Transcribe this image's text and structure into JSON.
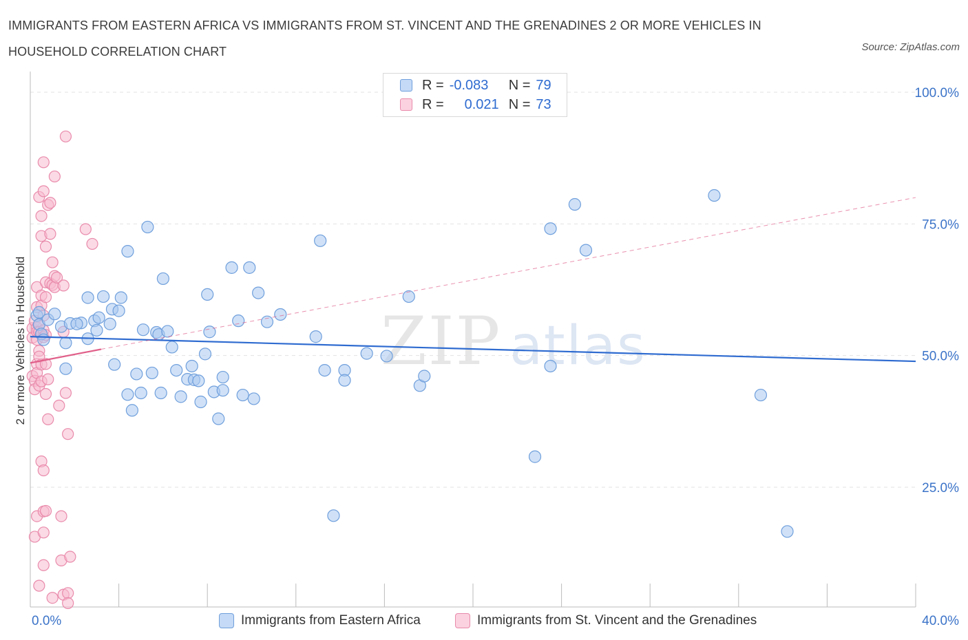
{
  "title": "IMMIGRANTS FROM EASTERN AFRICA VS IMMIGRANTS FROM ST. VINCENT AND THE GRENADINES 2 OR MORE VEHICLES IN HOUSEHOLD CORRELATION CHART",
  "source": "Source: ZipAtlas.com",
  "watermark": {
    "zip": "ZIP",
    "atlas": "atlas"
  },
  "legend": {
    "r_label": "R =",
    "n_label": "N =",
    "series": [
      {
        "r": "-0.083",
        "n": "79"
      },
      {
        "r": "0.021",
        "n": "73"
      }
    ]
  },
  "colors": {
    "blue_fill": "#aac8f0",
    "blue_stroke": "#6f9fdc",
    "blue_line": "#2e6bd0",
    "pink_fill": "#f7bcd0",
    "pink_stroke": "#e98aab",
    "pink_line": "#e0608a",
    "axis_label": "#3b73c8"
  },
  "chart_data": {
    "type": "scatter",
    "title": "IMMIGRANTS FROM EASTERN AFRICA VS IMMIGRANTS FROM ST. VINCENT AND THE GRENADINES 2 OR MORE VEHICLES IN HOUSEHOLD CORRELATION CHART",
    "xlabel": "",
    "ylabel": "2 or more Vehicles in Household",
    "xlim": [
      0,
      40
    ],
    "ylim": [
      0,
      100
    ],
    "x_ticks": [
      "0.0%",
      "40.0%"
    ],
    "y_ticks": [
      "25.0%",
      "50.0%",
      "75.0%",
      "100.0%"
    ],
    "y_tick_values": [
      25,
      50,
      75,
      100
    ],
    "grid": true,
    "legend_position": "top-center",
    "series": [
      {
        "name": "Immigrants from Eastern Africa",
        "r": -0.083,
        "n": 79,
        "trend": {
          "x": [
            0,
            40
          ],
          "y": [
            53.6,
            48.9
          ],
          "dashed_x": null
        },
        "points": [
          [
            0.3,
            57.6
          ],
          [
            0.4,
            55.9
          ],
          [
            0.5,
            54.1
          ],
          [
            0.6,
            53.0
          ],
          [
            0.4,
            58.2
          ],
          [
            0.8,
            56.8
          ],
          [
            1.1,
            57.9
          ],
          [
            1.4,
            55.5
          ],
          [
            1.6,
            52.4
          ],
          [
            1.8,
            56.1
          ],
          [
            2.3,
            56.2
          ],
          [
            2.6,
            53.2
          ],
          [
            1.6,
            47.5
          ],
          [
            2.6,
            61.0
          ],
          [
            2.9,
            56.6
          ],
          [
            3.0,
            54.8
          ],
          [
            3.1,
            57.2
          ],
          [
            3.3,
            61.2
          ],
          [
            3.6,
            56.0
          ],
          [
            3.7,
            58.8
          ],
          [
            4.0,
            58.5
          ],
          [
            4.1,
            61.0
          ],
          [
            3.8,
            48.3
          ],
          [
            4.4,
            42.6
          ],
          [
            4.6,
            39.6
          ],
          [
            4.4,
            69.8
          ],
          [
            4.8,
            46.5
          ],
          [
            5.0,
            42.9
          ],
          [
            5.1,
            54.9
          ],
          [
            5.3,
            74.4
          ],
          [
            5.5,
            46.7
          ],
          [
            5.7,
            54.4
          ],
          [
            5.8,
            54.0
          ],
          [
            5.9,
            42.9
          ],
          [
            6.0,
            64.6
          ],
          [
            6.4,
            51.6
          ],
          [
            6.6,
            47.2
          ],
          [
            6.8,
            42.2
          ],
          [
            7.1,
            45.5
          ],
          [
            7.3,
            48.0
          ],
          [
            7.4,
            45.4
          ],
          [
            7.6,
            45.2
          ],
          [
            7.7,
            41.2
          ],
          [
            7.9,
            50.3
          ],
          [
            8.0,
            61.6
          ],
          [
            8.1,
            54.5
          ],
          [
            8.3,
            43.1
          ],
          [
            8.5,
            38.0
          ],
          [
            8.7,
            43.4
          ],
          [
            8.7,
            45.9
          ],
          [
            9.1,
            66.7
          ],
          [
            9.4,
            56.6
          ],
          [
            9.6,
            42.5
          ],
          [
            9.9,
            66.7
          ],
          [
            10.1,
            41.8
          ],
          [
            10.3,
            61.9
          ],
          [
            10.7,
            56.4
          ],
          [
            11.3,
            57.8
          ],
          [
            12.9,
            53.6
          ],
          [
            13.1,
            71.8
          ],
          [
            13.3,
            47.2
          ],
          [
            13.7,
            19.6
          ],
          [
            14.2,
            47.2
          ],
          [
            14.2,
            45.3
          ],
          [
            15.2,
            50.4
          ],
          [
            16.1,
            49.9
          ],
          [
            17.1,
            61.2
          ],
          [
            17.6,
            44.3
          ],
          [
            17.8,
            46.1
          ],
          [
            22.8,
            30.8
          ],
          [
            23.5,
            48.0
          ],
          [
            23.5,
            74.1
          ],
          [
            24.6,
            78.7
          ],
          [
            25.1,
            70.0
          ],
          [
            30.9,
            80.4
          ],
          [
            33.0,
            42.5
          ],
          [
            34.2,
            16.6
          ],
          [
            6.2,
            54.6
          ],
          [
            2.1,
            56.0
          ]
        ]
      },
      {
        "name": "Immigrants from St. Vincent and the Grenadines",
        "r": 0.021,
        "n": 73,
        "trend": {
          "x": [
            0,
            3.2
          ],
          "y": [
            48.6,
            51.2
          ],
          "dashed_x": [
            3.2,
            40
          ],
          "dashed_y": [
            51.2,
            80.0
          ]
        },
        "points": [
          [
            0.1,
            55.2
          ],
          [
            0.1,
            53.4
          ],
          [
            0.1,
            46.1
          ],
          [
            0.2,
            45.2
          ],
          [
            0.2,
            43.6
          ],
          [
            0.2,
            56.6
          ],
          [
            0.3,
            55.3
          ],
          [
            0.3,
            54.5
          ],
          [
            0.3,
            53.0
          ],
          [
            0.3,
            48.4
          ],
          [
            0.3,
            46.7
          ],
          [
            0.2,
            15.6
          ],
          [
            0.3,
            19.5
          ],
          [
            0.3,
            63.0
          ],
          [
            0.3,
            59.2
          ],
          [
            0.4,
            55.9
          ],
          [
            0.4,
            54.5
          ],
          [
            0.4,
            50.9
          ],
          [
            0.4,
            49.8
          ],
          [
            0.4,
            44.3
          ],
          [
            0.4,
            80.1
          ],
          [
            0.4,
            6.3
          ],
          [
            0.5,
            76.5
          ],
          [
            0.5,
            72.7
          ],
          [
            0.5,
            61.4
          ],
          [
            0.5,
            59.5
          ],
          [
            0.5,
            54.1
          ],
          [
            0.5,
            48.3
          ],
          [
            0.5,
            45.1
          ],
          [
            0.5,
            29.9
          ],
          [
            0.6,
            86.7
          ],
          [
            0.6,
            81.2
          ],
          [
            0.6,
            57.6
          ],
          [
            0.6,
            54.8
          ],
          [
            0.6,
            53.5
          ],
          [
            0.6,
            28.2
          ],
          [
            0.6,
            20.4
          ],
          [
            0.6,
            16.4
          ],
          [
            0.6,
            10.2
          ],
          [
            0.7,
            70.7
          ],
          [
            0.7,
            63.9
          ],
          [
            0.7,
            61.1
          ],
          [
            0.7,
            53.9
          ],
          [
            0.7,
            48.4
          ],
          [
            0.7,
            42.7
          ],
          [
            0.7,
            20.5
          ],
          [
            0.8,
            78.6
          ],
          [
            0.8,
            45.5
          ],
          [
            0.8,
            37.9
          ],
          [
            0.9,
            79.0
          ],
          [
            0.9,
            73.1
          ],
          [
            0.9,
            63.7
          ],
          [
            1.0,
            67.7
          ],
          [
            1.0,
            63.4
          ],
          [
            1.0,
            4.0
          ],
          [
            1.1,
            84.0
          ],
          [
            1.1,
            65.1
          ],
          [
            1.1,
            63.0
          ],
          [
            1.2,
            64.8
          ],
          [
            1.3,
            40.5
          ],
          [
            1.4,
            19.5
          ],
          [
            1.4,
            11.1
          ],
          [
            1.5,
            4.6
          ],
          [
            1.5,
            63.3
          ],
          [
            1.5,
            54.5
          ],
          [
            1.6,
            91.6
          ],
          [
            1.6,
            42.9
          ],
          [
            1.7,
            35.1
          ],
          [
            1.7,
            4.9
          ],
          [
            1.7,
            3.0
          ],
          [
            1.8,
            11.8
          ],
          [
            2.5,
            74.0
          ],
          [
            2.8,
            71.2
          ]
        ]
      }
    ]
  },
  "bottom_legend": [
    "Immigrants from Eastern Africa",
    "Immigrants from St. Vincent and the Grenadines"
  ]
}
